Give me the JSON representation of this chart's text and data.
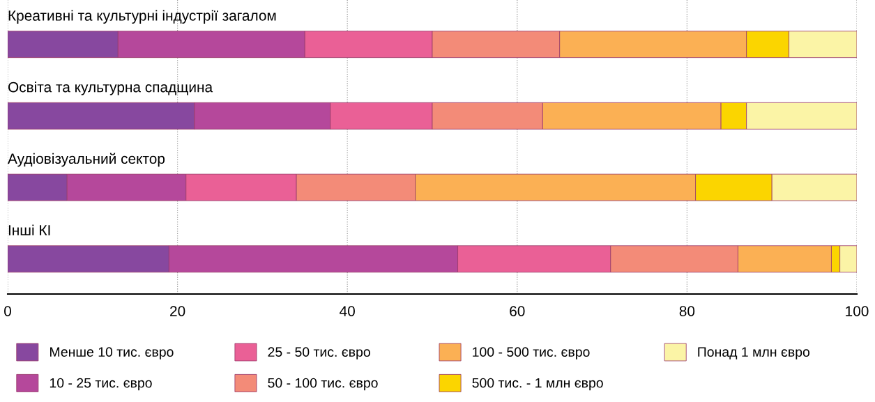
{
  "chart_data": {
    "type": "bar",
    "orientation": "horizontal",
    "stacked": true,
    "categories": [
      "Креативні та культурні індустрії загалом",
      "Освіта та культурна спадщина",
      "Аудіовізуальний сектор",
      "Інші КІ"
    ],
    "series": [
      {
        "name": "Менше 10 тис. євро",
        "color": "#87489f",
        "values": [
          13,
          22,
          7,
          19
        ]
      },
      {
        "name": "10 - 25 тис. євро",
        "color": "#b5489b",
        "values": [
          22,
          16,
          14,
          34
        ]
      },
      {
        "name": "25 - 50 тис. євро",
        "color": "#ea6096",
        "values": [
          15,
          12,
          13,
          18
        ]
      },
      {
        "name": "50 - 100 тис. євро",
        "color": "#f38b78",
        "values": [
          15,
          13,
          14,
          15
        ]
      },
      {
        "name": "100 - 500 тис. євро",
        "color": "#fbb054",
        "values": [
          22,
          21,
          33,
          11
        ]
      },
      {
        "name": "500 тис. - 1 млн євро",
        "color": "#fbd500",
        "values": [
          5,
          3,
          9,
          1
        ]
      },
      {
        "name": "Понад 1 млн євро",
        "color": "#fbf4a6",
        "values": [
          8,
          13,
          10,
          2
        ]
      }
    ],
    "xlim": [
      0,
      100
    ],
    "xticks": [
      0,
      20,
      40,
      60,
      80,
      100
    ],
    "grid": "x",
    "legend": "bottom"
  }
}
